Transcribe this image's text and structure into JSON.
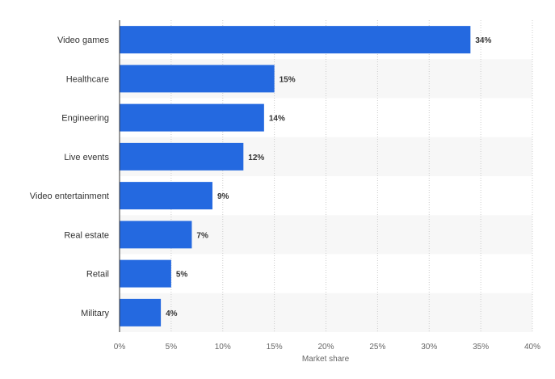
{
  "chart_data": {
    "type": "bar",
    "orientation": "horizontal",
    "categories": [
      "Video games",
      "Healthcare",
      "Engineering",
      "Live events",
      "Video entertainment",
      "Real estate",
      "Retail",
      "Military"
    ],
    "values": [
      34,
      15,
      14,
      12,
      9,
      7,
      5,
      4
    ],
    "value_labels": [
      "34%",
      "15%",
      "14%",
      "12%",
      "9%",
      "7%",
      "5%",
      "4%"
    ],
    "xlabel": "Market share",
    "ylabel": "",
    "xlim": [
      0,
      40
    ],
    "x_ticks": [
      "0%",
      "5%",
      "10%",
      "15%",
      "20%",
      "25%",
      "30%",
      "35%",
      "40%"
    ],
    "grid": true,
    "bar_color": "#2469e0"
  }
}
